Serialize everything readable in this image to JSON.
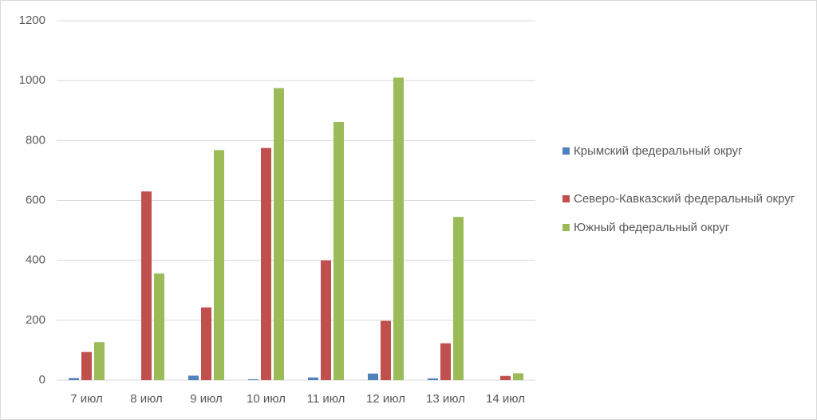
{
  "chart_data": {
    "type": "bar",
    "categories": [
      "7 июл",
      "8 июл",
      "9 июл",
      "10 июл",
      "11 июл",
      "12 июл",
      "13 июл",
      "14 июл"
    ],
    "series": [
      {
        "name": "Крымский федеральный округ",
        "color": "#4f81bd",
        "values": [
          7,
          0,
          15,
          3,
          9,
          22,
          6,
          0
        ]
      },
      {
        "name": "Северо-Кавказский федеральный округ",
        "color": "#c0504d",
        "values": [
          94,
          630,
          243,
          775,
          400,
          198,
          123,
          14
        ]
      },
      {
        "name": "Южный федеральный округ",
        "color": "#9bbb59",
        "values": [
          127,
          356,
          768,
          975,
          862,
          1010,
          545,
          23
        ]
      }
    ],
    "ylim": [
      0,
      1200
    ],
    "yticks": [
      0,
      200,
      400,
      600,
      800,
      1000,
      1200
    ],
    "grid": true,
    "legend": "right"
  }
}
